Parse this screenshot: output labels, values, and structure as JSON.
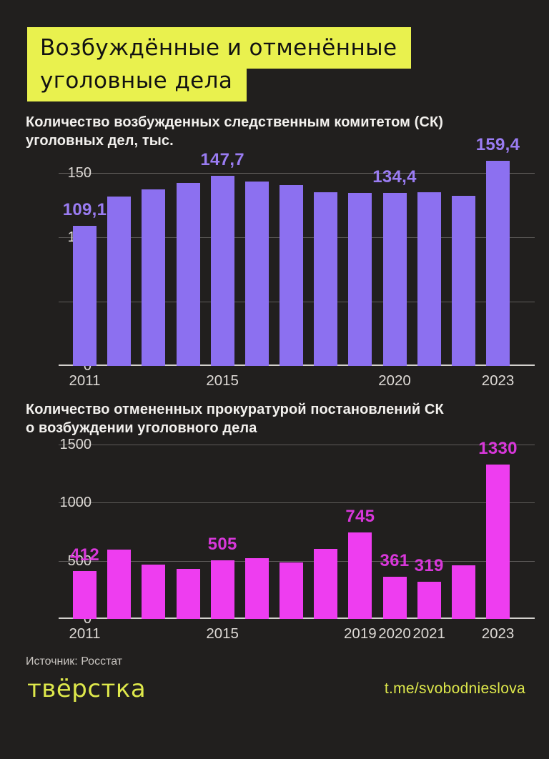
{
  "title": {
    "line1": "Возбуждённые и отменённые",
    "line2": "уголовные дела"
  },
  "colors": {
    "background": "#211f1e",
    "accent_yellow": "#e9f14e",
    "footer_yellow": "#dee84b",
    "purple_bar": "#8c70f0",
    "purple_label": "#9a7cf2",
    "magenta_bar": "#ee3df0",
    "magenta_label": "#d837da",
    "axis_text": "#dedad6",
    "subtitle_text": "#f3f1ee",
    "source_text": "#c9c5c1"
  },
  "chart_data": [
    {
      "type": "bar",
      "subtitle": "Количество возбужденных следственным комитетом (СК)\nуголовных дел, тыс.",
      "categories": [
        2011,
        2012,
        2013,
        2014,
        2015,
        2016,
        2017,
        2018,
        2019,
        2020,
        2021,
        2022,
        2023
      ],
      "values": [
        109.1,
        131.7,
        137.2,
        142.2,
        147.7,
        143.5,
        140.5,
        135.2,
        134.5,
        134.4,
        134.8,
        132.1,
        159.4
      ],
      "point_labels": [
        {
          "index": 0,
          "text": "109,1"
        },
        {
          "index": 4,
          "text": "147,7"
        },
        {
          "index": 9,
          "text": "134,4"
        },
        {
          "index": 12,
          "text": "159,4"
        }
      ],
      "x_ticks": [
        {
          "index": 0,
          "label": "2011"
        },
        {
          "index": 4,
          "label": "2015"
        },
        {
          "index": 9,
          "label": "2020"
        },
        {
          "index": 12,
          "label": "2023"
        }
      ],
      "y_ticks": [
        {
          "value": 0,
          "label": "0"
        },
        {
          "value": 50,
          "label": "50"
        },
        {
          "value": 100,
          "label": "100"
        },
        {
          "value": 150,
          "label": "150"
        }
      ],
      "ylim": [
        0,
        160
      ],
      "ylabel": "",
      "xlabel": "",
      "grid": "horizontal",
      "legend": "none",
      "bar_color": "#8c70f0",
      "label_color": "#9a7cf2"
    },
    {
      "type": "bar",
      "subtitle": "Количество отмененных прокуратурой постановлений СК\nо возбуждении уголовного дела",
      "categories": [
        2011,
        2012,
        2013,
        2014,
        2015,
        2016,
        2017,
        2018,
        2019,
        2020,
        2021,
        2022,
        2023
      ],
      "values": [
        412,
        597,
        468,
        430,
        505,
        520,
        488,
        600,
        745,
        361,
        319,
        460,
        1330
      ],
      "point_labels": [
        {
          "index": 0,
          "text": "412"
        },
        {
          "index": 4,
          "text": "505"
        },
        {
          "index": 8,
          "text": "745"
        },
        {
          "index": 9,
          "text": "361"
        },
        {
          "index": 10,
          "text": "319"
        },
        {
          "index": 12,
          "text": "1330"
        }
      ],
      "x_ticks": [
        {
          "index": 0,
          "label": "2011"
        },
        {
          "index": 4,
          "label": "2015"
        },
        {
          "index": 8,
          "label": "2019"
        },
        {
          "index": 9,
          "label": "2020"
        },
        {
          "index": 10,
          "label": "2021"
        },
        {
          "index": 12,
          "label": "2023"
        }
      ],
      "y_ticks": [
        {
          "value": 0,
          "label": "0"
        },
        {
          "value": 500,
          "label": "500"
        },
        {
          "value": 1000,
          "label": "1000"
        },
        {
          "value": 1500,
          "label": "1500"
        }
      ],
      "ylim": [
        0,
        1500
      ],
      "ylabel": "",
      "xlabel": "",
      "grid": "horizontal",
      "legend": "none",
      "bar_color": "#ee3df0",
      "label_color": "#d837da"
    }
  ],
  "footer": {
    "source": "Источник: Росстат",
    "logo": "твёрстка",
    "link": "t.me/svobodnieslova"
  }
}
